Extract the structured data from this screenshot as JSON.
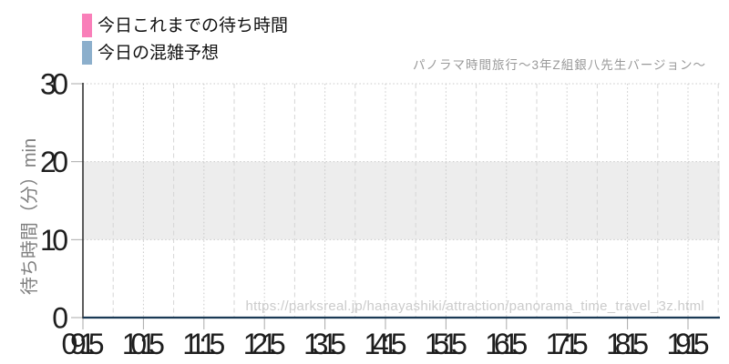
{
  "legend": {
    "items": [
      {
        "label": "今日これまでの待ち時間",
        "color": "#f97fb9"
      },
      {
        "label": "今日の混雑予想",
        "color": "#8cafcc"
      }
    ]
  },
  "chart_data": {
    "type": "line",
    "title": "パノラマ時間旅行～3年Z組銀八先生バージョン～",
    "ylabel": "待ち時間（分）min",
    "watermark": "https://parksreal.jp/hanayashiki/attraction/panorama_time_travel_3z.html",
    "ylim": [
      0,
      30
    ],
    "yticks": [
      0,
      10,
      20,
      30
    ],
    "x": [
      "09:15",
      "10:15",
      "11:15",
      "12:15",
      "13:15",
      "14:15",
      "15:15",
      "16:15",
      "17:15",
      "18:15",
      "19:15"
    ],
    "band": {
      "from": 10,
      "to": 20,
      "color": "#ededed"
    },
    "series": [
      {
        "name": "今日これまでの待ち時間",
        "color": "#f97fb9",
        "values": []
      },
      {
        "name": "今日の混雑予想",
        "color": "#1a3a55",
        "values": [
          0,
          0,
          0,
          0,
          0,
          0,
          0,
          0,
          0,
          0,
          0
        ]
      }
    ],
    "legend_position": "top-left",
    "grid": {
      "horizontal": "dotted",
      "vertical_hour": "dotted",
      "vertical_half_hour": "dashed"
    }
  },
  "style": {
    "background": "#ffffff",
    "axis_spine_color": "#333333",
    "tick_color": "#aaaaaa",
    "tick_label_color": "#1e1e1e",
    "grid_color": "#c9c9c9",
    "grid_half_hour_color": "#d6d6d6",
    "ylabel_color": "#808080",
    "title_color": "#999999",
    "watermark_color": "#cbcbcb"
  }
}
